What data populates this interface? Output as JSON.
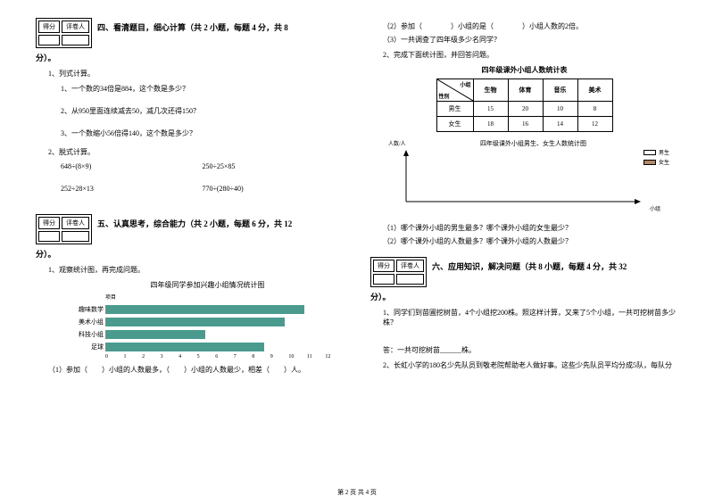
{
  "left": {
    "scoreHeaders": [
      "得分",
      "评卷人"
    ],
    "sec4Title": "四、看清题目，细心计算（共 2 小题，每题 4 分，共 8",
    "sec4Suffix": "分）。",
    "q4_1": "1、列式计算。",
    "q4_1_1": "1、一个数的34倍是884，这个数是多少？",
    "q4_1_2": "2、从950里面连续减去50，减几次还得150？",
    "q4_1_3": "3、一个数缩小56倍得140，这个数是多少？",
    "q4_2": "2、脱式计算。",
    "expr1a": "648÷(8×9)",
    "expr1b": "250÷25×85",
    "expr2a": "252÷28×13",
    "expr2b": "770÷(280÷40)",
    "sec5Title": "五、认真思考，综合能力（共 2 小题，每题 6 分，共 12",
    "sec5Suffix": "分）。",
    "q5_1": "1、观察统计图，再完成问题。",
    "chart1Title": "四年级同学参加兴趣小组情况统计图",
    "barHeader": "项目",
    "bars": [
      {
        "label": "趣味数学",
        "value": 10
      },
      {
        "label": "美术小组",
        "value": 9
      },
      {
        "label": "科技小组",
        "value": 5
      },
      {
        "label": "足球",
        "value": 8
      }
    ],
    "axisMax": 12,
    "axisTicks": [
      "0",
      "1",
      "2",
      "3",
      "4",
      "5",
      "6",
      "7",
      "8",
      "9",
      "10",
      "11",
      "12"
    ],
    "q5_1_sub": "（1）参加（　　）小组的人数最多，（　　）小组的人数最少，相差（　　）人。"
  },
  "right": {
    "r_sub2": "（2）参加（　　　　）小组的是（　　　　）小组人数的2倍。",
    "r_sub3": "（3）一共调查了四年级多少名同学？",
    "q5_2": "2、完成下面统计图，并回答问题。",
    "tableTitle": "四年级课外小组人数统计表",
    "diagTop": "小组",
    "diagBot": "性别",
    "cols": [
      "生物",
      "体育",
      "音乐",
      "美术"
    ],
    "rows": [
      {
        "h": "男生",
        "cells": [
          "15",
          "20",
          "10",
          "8"
        ]
      },
      {
        "h": "女生",
        "cells": [
          "18",
          "16",
          "14",
          "12"
        ]
      }
    ],
    "chart2Title": "四年级课外小组男生、女生人数统计图",
    "yLabel": "人数/人",
    "xLabel": "小组",
    "legendBoy": "男生",
    "legendGirl": "女生",
    "legendBoyColor": "#ffffff",
    "legendGirlColor": "#b08968",
    "q5_2_1": "（1）哪个课外小组的男生最多？哪个课外小组的女生最少？",
    "q5_2_2": "（2）哪个课外小组的人数最多？哪个课外小组的人数最少？",
    "scoreHeaders": [
      "得分",
      "评卷人"
    ],
    "sec6Title": "六、应用知识，解决问题（共 8 小题，每题 4 分，共 32",
    "sec6Suffix": "分）。",
    "q6_1": "1、同学们到苗圃挖树苗，4个小组挖200株。照这样计算，又来了5个小组，一共可挖树苗多少株？",
    "q6_1_ans": "答：一共可挖树苗______株。",
    "q6_2": "2、长虹小学的180名少先队员到敬老院帮助老人做好事。这些少先队员平均分成5队，每队分"
  },
  "footer": "第 2 页 共 4 页"
}
